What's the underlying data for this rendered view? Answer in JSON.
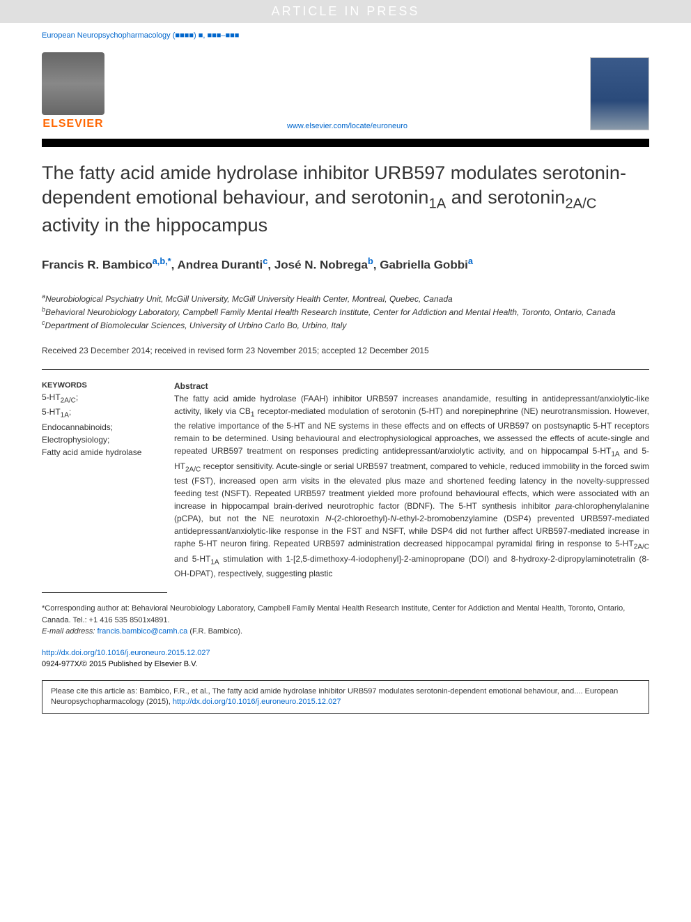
{
  "watermark": "ARTICLE IN PRESS",
  "journal_ref_prefix": "European Neuropsychopharmacology (",
  "journal_ref_suffix": ") ■, ■■■–■■■",
  "elsevier_label": "ELSEVIER",
  "journal_url": "www.elsevier.com/locate/euroneuro",
  "title_parts": {
    "line1": "The fatty acid amide hydrolase inhibitor URB597 modulates serotonin-dependent emotional behaviour, and serotonin",
    "sub1": "1A",
    "mid": " and serotonin",
    "sub2": "2A/C",
    "end": " activity in the hippocampus"
  },
  "authors": [
    {
      "name": "Francis R. Bambico",
      "sup": "a,b,*"
    },
    {
      "name": "Andrea Duranti",
      "sup": "c"
    },
    {
      "name": "José N. Nobrega",
      "sup": "b"
    },
    {
      "name": "Gabriella Gobbi",
      "sup": "a"
    }
  ],
  "affiliations": [
    {
      "sup": "a",
      "text": "Neurobiological Psychiatry Unit, McGill University, McGill University Health Center, Montreal, Quebec, Canada"
    },
    {
      "sup": "b",
      "text": "Behavioral Neurobiology Laboratory, Campbell Family Mental Health Research Institute, Center for Addiction and Mental Health, Toronto, Ontario, Canada"
    },
    {
      "sup": "c",
      "text": "Department of Biomolecular Sciences, University of Urbino Carlo Bo, Urbino, Italy"
    }
  ],
  "dates": "Received 23 December 2014; received in revised form 23 November 2015; accepted 12 December 2015",
  "keywords_heading": "KEYWORDS",
  "keywords_html": "5-HT<sub>2A/C</sub>;<br>5-HT<sub>1A</sub>;<br>Endocannabinoids;<br>Electrophysiology;<br>Fatty acid amide hydrolase",
  "abstract_heading": "Abstract",
  "abstract_html": "The fatty acid amide hydrolase (FAAH) inhibitor URB597 increases anandamide, resulting in antidepressant/anxiolytic-like activity, likely via CB<sub>1</sub> receptor-mediated modulation of serotonin (5-HT) and norepinephrine (NE) neurotransmission. However, the relative importance of the 5-HT and NE systems in these effects and on effects of URB597 on postsynaptic 5-HT receptors remain to be determined. Using behavioural and electrophysiological approaches, we assessed the effects of acute-single and repeated URB597 treatment on responses predicting antidepressant/anxiolytic activity, and on hippocampal 5-HT<sub>1A</sub> and 5-HT<sub>2A/C</sub> receptor sensitivity. Acute-single or serial URB597 treatment, compared to vehicle, reduced immobility in the forced swim test (FST), increased open arm visits in the elevated plus maze and shortened feeding latency in the novelty-suppressed feeding test (NSFT). Repeated URB597 treatment yielded more profound behavioural effects, which were associated with an increase in hippocampal brain-derived neurotrophic factor (BDNF). The 5-HT synthesis inhibitor <i>para</i>-chlorophenylalanine (pCPA), but not the NE neurotoxin <i>N</i>-(2-chloroethyl)-<i>N</i>-ethyl-2-bromobenzylamine (DSP4) prevented URB597-mediated antidepressant/anxiolytic-like response in the FST and NSFT, while DSP4 did not further affect URB597-mediated increase in raphe 5-HT neuron firing. Repeated URB597 administration decreased hippocampal pyramidal firing in response to 5-HT<sub>2A/C</sub> and 5-HT<sub>1A</sub> stimulation with 1-[2,5-dimethoxy-4-iodophenyl]-2-aminopropane (DOI) and 8-hydroxy-2-dipropylaminotetralin (8-OH-DPAT), respectively, suggesting plastic",
  "footer": {
    "corresponding_prefix": "*Corresponding author at: Behavioral Neurobiology Laboratory, Campbell Family Mental Health Research Institute, Center for Addiction and Mental Health, Toronto, Ontario, Canada. Tel.: +1 416 535 8501x4891.",
    "email_label": "E-mail address:",
    "email": "francis.bambico@camh.ca",
    "email_suffix": " (F.R. Bambico)."
  },
  "doi": "http://dx.doi.org/10.1016/j.euroneuro.2015.12.027",
  "copyright": "0924-977X/© 2015 Published by Elsevier B.V.",
  "citation": {
    "text": "Please cite this article as: Bambico, F.R., et al., The fatty acid amide hydrolase inhibitor URB597 modulates serotonin-dependent emotional behaviour, and.... European Neuropsychopharmacology (2015), ",
    "link": "http://dx.doi.org/10.1016/j.euroneuro.2015.12.027"
  },
  "colors": {
    "link": "#0066cc",
    "elsevier_orange": "#ff6600",
    "text": "#333333",
    "watermark_bg": "#e0e0e0",
    "watermark_fg": "#ffffff"
  }
}
